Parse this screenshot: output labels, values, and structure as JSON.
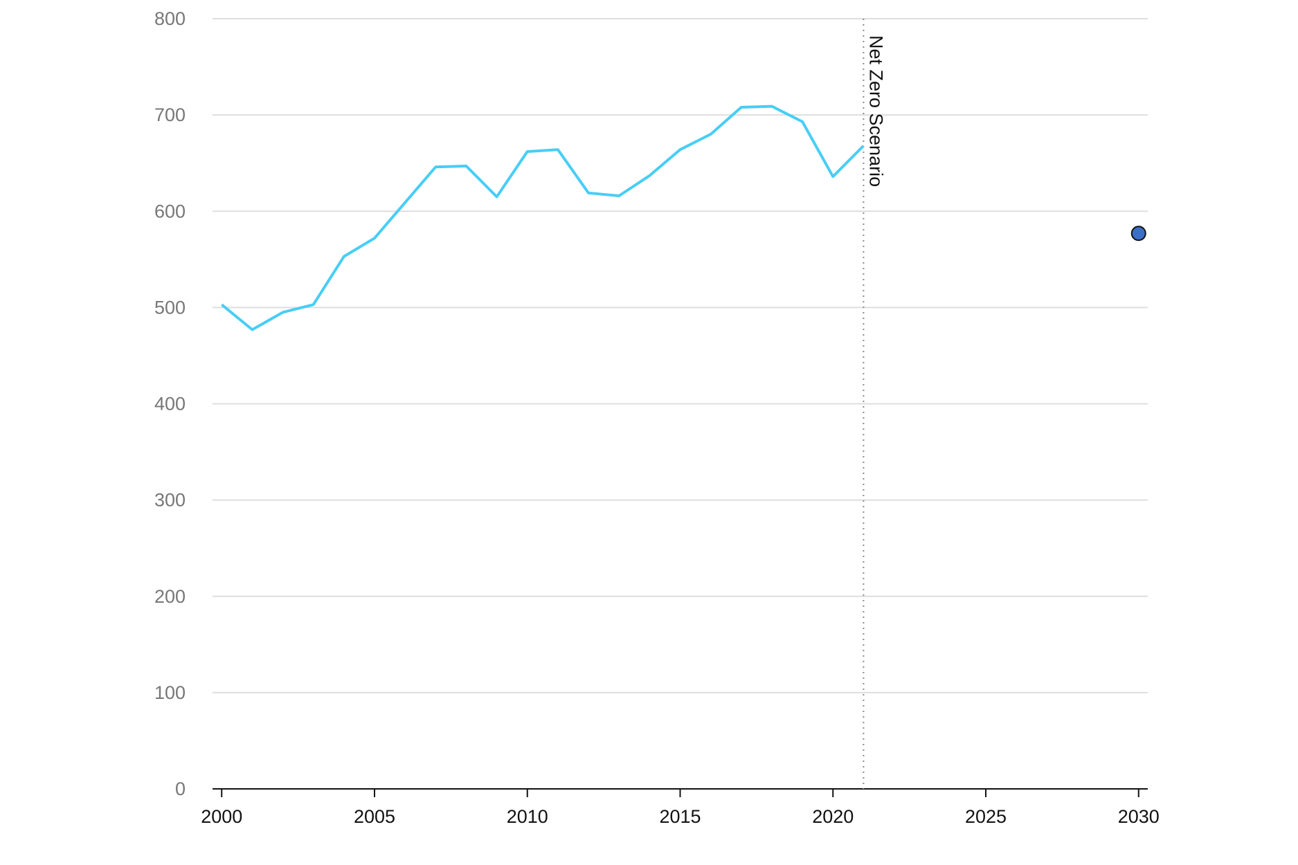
{
  "chart_data": {
    "type": "line",
    "series": [
      {
        "style": "line",
        "color": "#47cef6",
        "x": [
          2000,
          2001,
          2002,
          2003,
          2004,
          2005,
          2006,
          2007,
          2008,
          2009,
          2010,
          2011,
          2012,
          2013,
          2014,
          2015,
          2016,
          2017,
          2018,
          2019,
          2020,
          2021
        ],
        "values": [
          503,
          477,
          495,
          503,
          553,
          572,
          609,
          646,
          647,
          615,
          662,
          664,
          619,
          616,
          637,
          664,
          680,
          708,
          709,
          693,
          636,
          668
        ]
      },
      {
        "style": "marker",
        "color": "#3a6fc8",
        "x": [
          2030
        ],
        "values": [
          577
        ]
      }
    ],
    "annotations": [
      {
        "x": 2021,
        "text": "Net Zero Scenario"
      }
    ],
    "xlim": [
      1999.7,
      2030.3
    ],
    "xticks": [
      2000,
      2005,
      2010,
      2015,
      2020,
      2025,
      2030
    ],
    "ylim": [
      0,
      800
    ],
    "yticks": [
      0,
      100,
      200,
      300,
      400,
      500,
      600,
      700,
      800
    ],
    "grid": true
  }
}
